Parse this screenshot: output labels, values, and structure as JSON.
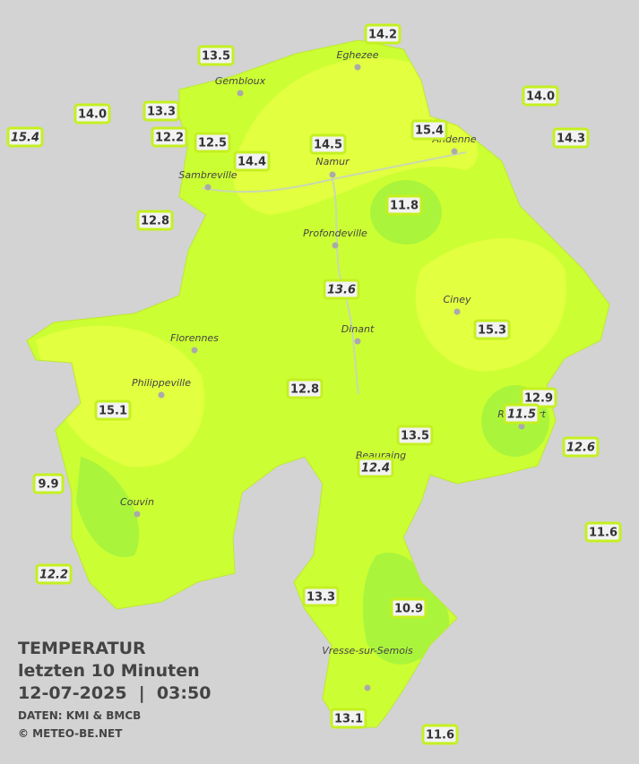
{
  "map": {
    "title": "TEMPERATUR",
    "subtitle": "letzten 10 Minuten",
    "datetime": "12-07-2025  |  03:50",
    "source": "DATEN: KMI & BMCB",
    "copyright": "© METEO-BE.NET",
    "cities": [
      "Eghezee",
      "Gembloux",
      "Andenne",
      "Namur",
      "Sambreville",
      "Profondeville",
      "Ciney",
      "Dinant",
      "Florennes",
      "Philippeville",
      "Rochefort",
      "Beauraing",
      "Couvin",
      "Vresse-sur-Semois"
    ],
    "stations": [
      {
        "label": "14.2",
        "italic": false
      },
      {
        "label": "13.5",
        "italic": false
      },
      {
        "label": "14.0",
        "italic": false
      },
      {
        "label": "14.0",
        "italic": false
      },
      {
        "label": "13.3",
        "italic": false
      },
      {
        "label": "15.4",
        "italic": true
      },
      {
        "label": "12.2",
        "italic": false
      },
      {
        "label": "12.5",
        "italic": false
      },
      {
        "label": "14.5",
        "italic": false
      },
      {
        "label": "15.4",
        "italic": false
      },
      {
        "label": "14.3",
        "italic": false
      },
      {
        "label": "14.4",
        "italic": false
      },
      {
        "label": "11.8",
        "italic": false
      },
      {
        "label": "12.8",
        "italic": false
      },
      {
        "label": "13.6",
        "italic": true
      },
      {
        "label": "15.3",
        "italic": false
      },
      {
        "label": "12.8",
        "italic": false
      },
      {
        "label": "12.9",
        "italic": false
      },
      {
        "label": "15.1",
        "italic": false
      },
      {
        "label": "11.5",
        "italic": true
      },
      {
        "label": "13.5",
        "italic": false
      },
      {
        "label": "12.6",
        "italic": true
      },
      {
        "label": "12.4",
        "italic": true
      },
      {
        "label": "9.9",
        "italic": false
      },
      {
        "label": "11.6",
        "italic": false
      },
      {
        "label": "12.2",
        "italic": true
      },
      {
        "label": "13.3",
        "italic": false
      },
      {
        "label": "10.9",
        "italic": false
      },
      {
        "label": "13.1",
        "italic": false
      },
      {
        "label": "11.6",
        "italic": false
      }
    ]
  }
}
